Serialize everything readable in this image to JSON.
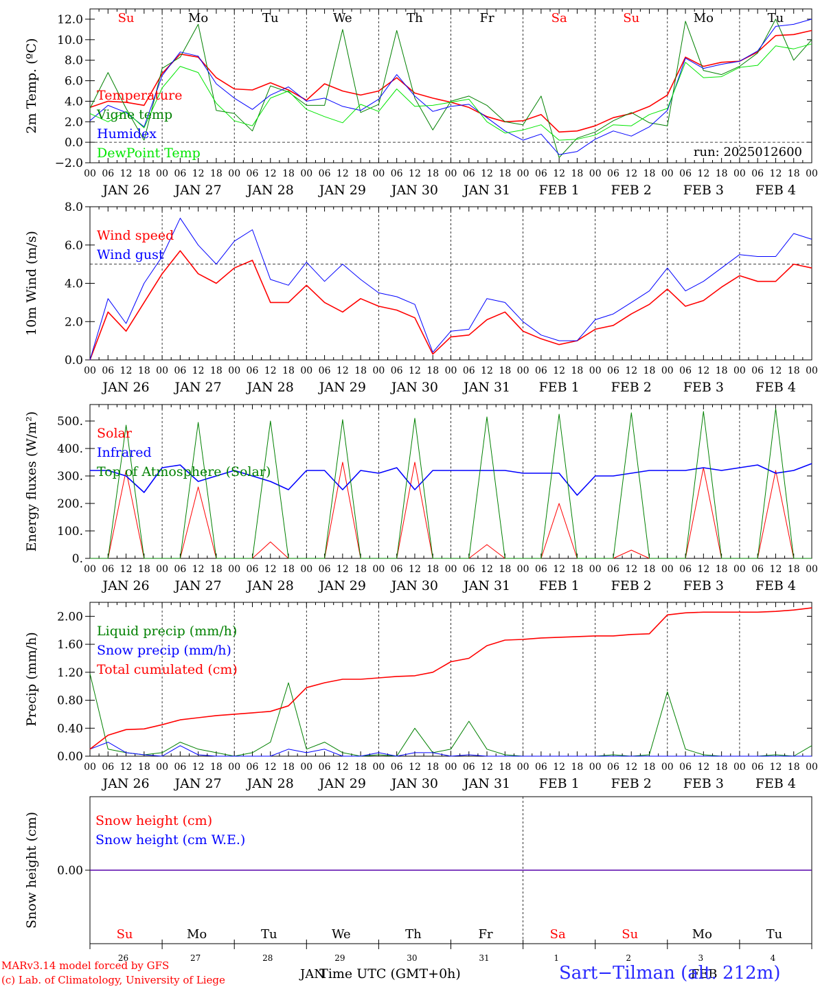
{
  "run": "run: 2025012600",
  "time_axis": {
    "hour_labels": [
      "00",
      "06",
      "12",
      "18"
    ],
    "day_labels": [
      "JAN 26",
      "JAN 27",
      "JAN 28",
      "JAN 29",
      "JAN 30",
      "JAN 31",
      "FEB  1",
      "FEB  2",
      "FEB  3",
      "FEB  4"
    ],
    "weekdays": [
      "Su",
      "Mo",
      "Tu",
      "We",
      "Th",
      "Fr",
      "Sa",
      "Su",
      "Mo",
      "Tu"
    ],
    "weekday_colors": [
      "#ff0000",
      "#000000",
      "#000000",
      "#000000",
      "#000000",
      "#000000",
      "#ff0000",
      "#ff0000",
      "#000000",
      "#000000"
    ],
    "bottom_day_numbers": [
      "26",
      "27",
      "28",
      "29",
      "30",
      "31",
      "1",
      "2",
      "3",
      "4"
    ],
    "month_labels": [
      "JAN",
      "FEB"
    ],
    "xlabel": "Time UTC (GMT+0h)"
  },
  "footer": {
    "credit_line1": "MARv3.14 model forced by GFS",
    "credit_line2": "(c) Lab. of Climatology, University of Liege",
    "station": "Sart−Tilman (alt. 212m)"
  },
  "chart_data": [
    {
      "type": "line",
      "ylabel": "2m Temp. (ºC)",
      "ylim": [
        -2,
        13
      ],
      "yticks": [
        -2,
        0,
        2,
        4,
        6,
        8,
        10,
        12
      ],
      "ytick_labels": [
        "−2.0",
        "0.0",
        "2.0",
        "4.0",
        "6.0",
        "8.0",
        "10.0",
        "12.0"
      ],
      "ref_line": 0,
      "x_days": [
        0,
        0.25,
        0.5,
        0.75,
        1,
        1.25,
        1.5,
        1.75,
        2,
        2.25,
        2.5,
        2.75,
        3,
        3.25,
        3.5,
        3.75,
        4,
        4.25,
        4.5,
        4.75,
        5,
        5.25,
        5.5,
        5.75,
        6,
        6.25,
        6.5,
        6.75,
        7,
        7.25,
        7.5,
        7.75,
        8,
        8.25,
        8.5,
        8.75,
        9,
        9.25,
        9.5,
        9.75,
        10
      ],
      "series": [
        {
          "name": "Temperature",
          "color": "#ff0000",
          "width": 1.6,
          "values": [
            3.4,
            4.0,
            3.9,
            3.6,
            6.7,
            8.6,
            8.3,
            6.3,
            5.2,
            5.1,
            5.8,
            5.1,
            4.1,
            5.7,
            5.0,
            4.6,
            5.0,
            6.3,
            4.8,
            4.3,
            3.9,
            3.4,
            2.5,
            2.0,
            2.1,
            2.7,
            1.0,
            1.1,
            1.6,
            2.4,
            2.8,
            3.5,
            4.6,
            8.3,
            7.4,
            7.8,
            7.9,
            8.8,
            10.4,
            10.5,
            10.9
          ]
        },
        {
          "name": "Vigne temp",
          "color": "#008000",
          "width": 1.0,
          "values": [
            3.3,
            6.8,
            3.3,
            0.2,
            7.2,
            8.3,
            11.5,
            3.1,
            2.8,
            1.1,
            5.5,
            4.9,
            3.6,
            3.6,
            11.0,
            2.9,
            3.7,
            10.9,
            4.3,
            1.2,
            4.0,
            4.5,
            3.6,
            2.0,
            1.7,
            4.5,
            -1.5,
            0.4,
            1.0,
            2.1,
            2.9,
            1.9,
            1.6,
            11.8,
            7.0,
            6.6,
            7.4,
            8.7,
            12.0,
            8.0,
            10.0
          ]
        },
        {
          "name": "Humidex",
          "color": "#0000ff",
          "width": 1.0,
          "values": [
            2.1,
            3.6,
            2.9,
            1.5,
            6.5,
            8.8,
            8.4,
            5.7,
            4.3,
            3.2,
            4.6,
            5.4,
            4.0,
            4.3,
            3.5,
            3.1,
            4.2,
            6.6,
            4.5,
            3.0,
            3.5,
            3.7,
            2.4,
            1.1,
            0.2,
            0.8,
            -1.2,
            -0.9,
            0.3,
            1.1,
            0.6,
            1.5,
            3.1,
            8.2,
            7.2,
            7.6,
            7.9,
            8.9,
            11.3,
            11.5,
            12.0
          ]
        },
        {
          "name": "DewPoint Temp",
          "color": "#00e600",
          "width": 1.0,
          "values": [
            2.8,
            2.0,
            3.0,
            1.4,
            5.3,
            7.4,
            6.8,
            3.8,
            2.1,
            1.6,
            4.3,
            5.0,
            3.2,
            2.5,
            1.9,
            3.7,
            3.0,
            5.2,
            3.5,
            3.6,
            3.9,
            4.2,
            2.0,
            0.9,
            1.2,
            1.7,
            0.2,
            0.3,
            0.7,
            1.7,
            1.6,
            2.7,
            3.3,
            7.8,
            6.3,
            6.4,
            7.3,
            7.5,
            9.4,
            9.1,
            9.6
          ]
        }
      ]
    },
    {
      "type": "line",
      "ylabel": "10m Wind (m/s)",
      "ylim": [
        0,
        8
      ],
      "yticks": [
        0,
        2,
        4,
        6,
        8
      ],
      "ytick_labels": [
        "0.0",
        "2.0",
        "4.0",
        "6.0",
        "8.0"
      ],
      "ref_line": 5,
      "x_days": [
        0,
        0.25,
        0.5,
        0.75,
        1,
        1.25,
        1.5,
        1.75,
        2,
        2.25,
        2.5,
        2.75,
        3,
        3.25,
        3.5,
        3.75,
        4,
        4.25,
        4.5,
        4.75,
        5,
        5.25,
        5.5,
        5.75,
        6,
        6.25,
        6.5,
        6.75,
        7,
        7.25,
        7.5,
        7.75,
        8,
        8.25,
        8.5,
        8.75,
        9,
        9.25,
        9.5,
        9.75,
        10
      ],
      "series": [
        {
          "name": "Wind speed",
          "color": "#ff0000",
          "width": 1.6,
          "values": [
            0.0,
            2.5,
            1.5,
            3.0,
            4.5,
            5.7,
            4.5,
            4.0,
            4.8,
            5.2,
            3.0,
            3.0,
            3.9,
            3.0,
            2.5,
            3.2,
            2.8,
            2.6,
            2.2,
            0.3,
            1.2,
            1.3,
            2.1,
            2.5,
            1.5,
            1.1,
            0.8,
            1.0,
            1.6,
            1.8,
            2.4,
            2.9,
            3.7,
            2.8,
            3.1,
            3.8,
            4.4,
            4.1,
            4.1,
            5.0,
            4.8
          ]
        },
        {
          "name": "Wind gust",
          "color": "#0000ff",
          "width": 1.0,
          "values": [
            0.0,
            3.2,
            1.9,
            4.0,
            5.4,
            7.4,
            6.0,
            5.0,
            6.2,
            6.8,
            4.2,
            3.9,
            5.1,
            4.1,
            5.0,
            4.2,
            3.5,
            3.3,
            2.9,
            0.4,
            1.5,
            1.6,
            3.2,
            3.0,
            2.0,
            1.3,
            1.0,
            1.0,
            2.1,
            2.4,
            3.0,
            3.6,
            4.8,
            3.6,
            4.1,
            4.8,
            5.5,
            5.4,
            5.4,
            6.6,
            6.3
          ]
        }
      ]
    },
    {
      "type": "line",
      "ylabel": "Energy fluxes (W/m²)",
      "ylim": [
        0,
        560
      ],
      "yticks": [
        0,
        100,
        200,
        300,
        400,
        500
      ],
      "ytick_labels": [
        "0.",
        "100.",
        "200.",
        "300.",
        "400.",
        "500."
      ],
      "x_days": [
        0,
        0.25,
        0.5,
        0.75,
        1,
        1.25,
        1.5,
        1.75,
        2,
        2.25,
        2.5,
        2.75,
        3,
        3.25,
        3.5,
        3.75,
        4,
        4.25,
        4.5,
        4.75,
        5,
        5.25,
        5.5,
        5.75,
        6,
        6.25,
        6.5,
        6.75,
        7,
        7.25,
        7.5,
        7.75,
        8,
        8.25,
        8.5,
        8.75,
        9,
        9.25,
        9.5,
        9.75,
        10
      ],
      "series": [
        {
          "name": "Solar",
          "color": "#ff0000",
          "width": 1.0,
          "values": [
            0,
            0,
            320,
            0,
            0,
            0,
            260,
            0,
            0,
            0,
            60,
            0,
            0,
            0,
            350,
            0,
            0,
            0,
            350,
            0,
            0,
            0,
            50,
            0,
            0,
            0,
            200,
            0,
            0,
            0,
            30,
            0,
            0,
            0,
            330,
            0,
            0,
            0,
            320,
            0,
            0
          ]
        },
        {
          "name": "Infrared",
          "color": "#0000ff",
          "width": 1.6,
          "values": [
            320,
            320,
            300,
            240,
            330,
            340,
            280,
            300,
            320,
            300,
            280,
            250,
            320,
            320,
            250,
            320,
            310,
            330,
            250,
            320,
            320,
            320,
            320,
            320,
            310,
            310,
            310,
            230,
            300,
            300,
            310,
            320,
            320,
            320,
            330,
            320,
            330,
            340,
            310,
            320,
            345
          ]
        },
        {
          "name": "Top of Atmosphere (Solar)",
          "color": "#008000",
          "width": 1.0,
          "values": [
            0,
            0,
            485,
            0,
            0,
            0,
            495,
            0,
            0,
            0,
            500,
            0,
            0,
            0,
            505,
            0,
            0,
            0,
            510,
            0,
            0,
            0,
            515,
            0,
            0,
            0,
            525,
            0,
            0,
            0,
            530,
            0,
            0,
            0,
            535,
            0,
            0,
            0,
            545,
            0,
            0
          ]
        }
      ]
    },
    {
      "type": "line",
      "ylabel": "Precip (mm/h)",
      "ylim": [
        0,
        2.2
      ],
      "yticks": [
        0,
        0.4,
        0.8,
        1.2,
        1.6,
        2.0
      ],
      "ytick_labels": [
        "0.00",
        "0.40",
        "0.80",
        "1.20",
        "1.60",
        "2.00"
      ],
      "x_days": [
        0,
        0.25,
        0.5,
        0.75,
        1,
        1.25,
        1.5,
        1.75,
        2,
        2.25,
        2.5,
        2.75,
        3,
        3.25,
        3.5,
        3.75,
        4,
        4.25,
        4.5,
        4.75,
        5,
        5.25,
        5.5,
        5.75,
        6,
        6.25,
        6.5,
        6.75,
        7,
        7.25,
        7.5,
        7.75,
        8,
        8.25,
        8.5,
        8.75,
        9,
        9.25,
        9.5,
        9.75,
        10
      ],
      "series": [
        {
          "name": "Liquid precip (mm/h)",
          "color": "#008000",
          "width": 1.0,
          "values": [
            1.18,
            0.1,
            0.05,
            0.02,
            0.05,
            0.2,
            0.1,
            0.05,
            0.0,
            0.05,
            0.2,
            1.05,
            0.1,
            0.2,
            0.05,
            0.0,
            0.02,
            0.0,
            0.4,
            0.05,
            0.1,
            0.5,
            0.1,
            0.02,
            0.0,
            0.0,
            0.0,
            0.0,
            0.0,
            0.02,
            0.0,
            0.02,
            0.92,
            0.1,
            0.02,
            0.0,
            0.0,
            0.0,
            0.02,
            0.0,
            0.15
          ]
        },
        {
          "name": "Snow precip (mm/h)",
          "color": "#0000ff",
          "width": 1.0,
          "values": [
            0.1,
            0.2,
            0.05,
            0.02,
            0.0,
            0.15,
            0.02,
            0.0,
            0.0,
            0.0,
            0.0,
            0.1,
            0.05,
            0.1,
            0.0,
            0.0,
            0.05,
            0.0,
            0.05,
            0.05,
            0.0,
            0.02,
            0.0,
            0.0,
            0.0,
            0.0,
            0.0,
            0.0,
            0.0,
            0.0,
            0.0,
            0.0,
            0.0,
            0.0,
            0.0,
            0.0,
            0.0,
            0.0,
            0.0,
            0.0,
            0.0
          ]
        },
        {
          "name": "Total cumulated (cm)",
          "color": "#ff0000",
          "width": 1.6,
          "values": [
            0.1,
            0.3,
            0.38,
            0.39,
            0.45,
            0.52,
            0.55,
            0.58,
            0.6,
            0.62,
            0.64,
            0.72,
            0.98,
            1.05,
            1.1,
            1.1,
            1.12,
            1.14,
            1.15,
            1.2,
            1.35,
            1.4,
            1.58,
            1.66,
            1.67,
            1.69,
            1.7,
            1.71,
            1.72,
            1.72,
            1.74,
            1.75,
            2.02,
            2.05,
            2.06,
            2.06,
            2.06,
            2.06,
            2.07,
            2.09,
            2.12
          ]
        }
      ]
    },
    {
      "type": "line",
      "ylabel": "Snow height (cm)",
      "ylim": [
        -1,
        1
      ],
      "yticks": [
        0
      ],
      "ytick_labels": [
        "0.00"
      ],
      "x_days": [
        0,
        10
      ],
      "series": [
        {
          "name": "Snow height (cm)",
          "color": "#ff0000",
          "width": 1.4,
          "values": [
            0,
            0
          ]
        },
        {
          "name": "Snow height (cm W.E.)",
          "color": "#0000ff",
          "width": 1.0,
          "values": [
            0,
            0
          ]
        }
      ]
    }
  ]
}
